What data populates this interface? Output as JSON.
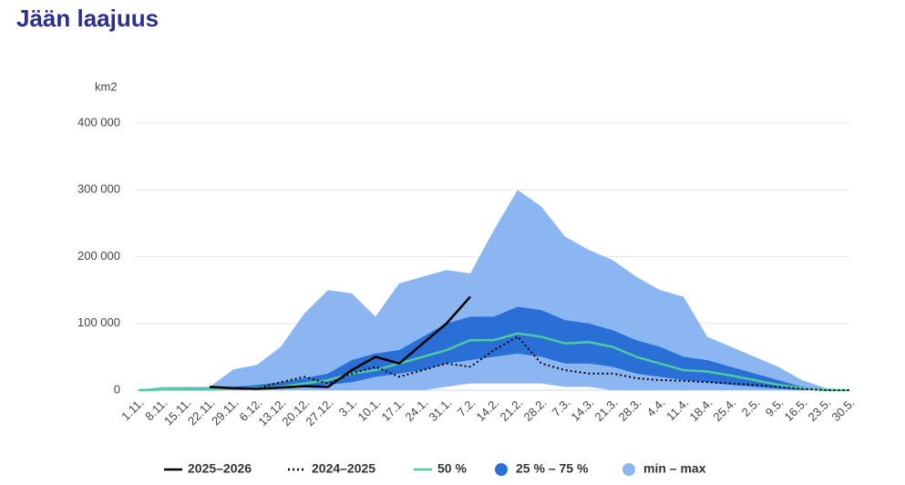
{
  "chart_data": {
    "type": "area-range-line",
    "title": "Jään laajuus",
    "y_axis_label": "km2",
    "categories": [
      "1.11.",
      "8.11.",
      "15.11.",
      "22.11.",
      "29.11.",
      "6.12.",
      "13.12.",
      "20.12.",
      "27.12.",
      "3.1.",
      "10.1.",
      "17.1.",
      "24.1.",
      "31.1.",
      "7.2.",
      "14.2.",
      "21.2.",
      "28.2.",
      "7.3.",
      "14.3.",
      "21.3.",
      "28.3.",
      "4.4.",
      "11.4.",
      "18.4.",
      "25.4.",
      "2.5.",
      "9.5.",
      "16.5.",
      "23.5.",
      "30.5."
    ],
    "ylim": [
      0,
      400000
    ],
    "yticks": [
      0,
      {
        "value": 100000,
        "label": "100 000"
      },
      {
        "value": 200000,
        "label": "200 000"
      },
      {
        "value": 300000,
        "label": "300 000"
      },
      {
        "value": 400000,
        "label": "400 000"
      }
    ],
    "grid": true,
    "legend": "bottom",
    "series": [
      {
        "name": "2025–2026",
        "kind": "line",
        "dash": "solid",
        "color": "#000000",
        "values": [
          null,
          null,
          null,
          5000,
          3000,
          2000,
          4000,
          6000,
          5000,
          30000,
          50000,
          40000,
          70000,
          100000,
          140000,
          null,
          null,
          null,
          null,
          null,
          null,
          null,
          null,
          null,
          null,
          null,
          null,
          null,
          null,
          null,
          null
        ]
      },
      {
        "name": "2024–2025",
        "kind": "line",
        "dash": "dotted",
        "color": "#000000",
        "values": [
          null,
          null,
          null,
          5000,
          3000,
          2000,
          12000,
          20000,
          10000,
          25000,
          35000,
          20000,
          30000,
          40000,
          35000,
          60000,
          80000,
          40000,
          30000,
          25000,
          25000,
          18000,
          15000,
          14000,
          12000,
          10000,
          8000,
          5000,
          2000,
          0,
          0
        ]
      },
      {
        "name": "50 %",
        "kind": "line",
        "dash": "solid",
        "color": "#4fc9a0",
        "values": [
          0,
          1000,
          1000,
          1000,
          2000,
          3000,
          5000,
          10000,
          15000,
          25000,
          30000,
          40000,
          50000,
          60000,
          75000,
          75000,
          85000,
          80000,
          70000,
          72000,
          65000,
          50000,
          40000,
          30000,
          28000,
          22000,
          15000,
          8000,
          3000,
          0,
          0
        ]
      },
      {
        "name": "25 % – 75 %",
        "kind": "range",
        "color": "#2a6fd6",
        "low": [
          0,
          0,
          0,
          0,
          0,
          1000,
          2000,
          5000,
          8000,
          12000,
          20000,
          25000,
          30000,
          40000,
          45000,
          50000,
          55000,
          50000,
          40000,
          40000,
          35000,
          25000,
          20000,
          15000,
          12000,
          8000,
          5000,
          2000,
          0,
          0,
          0
        ],
        "high": [
          0,
          2000,
          3000,
          3000,
          5000,
          8000,
          12000,
          18000,
          25000,
          45000,
          55000,
          60000,
          80000,
          100000,
          110000,
          110000,
          125000,
          120000,
          105000,
          100000,
          90000,
          75000,
          65000,
          50000,
          45000,
          35000,
          25000,
          15000,
          5000,
          1000,
          0
        ]
      },
      {
        "name": "min – max",
        "kind": "range",
        "color": "#8cb6f2",
        "low": [
          0,
          0,
          0,
          0,
          0,
          0,
          0,
          0,
          0,
          0,
          0,
          0,
          0,
          5000,
          10000,
          10000,
          10000,
          10000,
          5000,
          5000,
          0,
          0,
          0,
          0,
          0,
          0,
          0,
          0,
          0,
          0,
          0
        ],
        "high": [
          0,
          5000,
          5000,
          5000,
          31000,
          38000,
          65000,
          115000,
          150000,
          145000,
          110000,
          160000,
          170000,
          180000,
          175000,
          240000,
          300000,
          275000,
          230000,
          210000,
          195000,
          170000,
          150000,
          140000,
          80000,
          65000,
          50000,
          35000,
          15000,
          3000,
          0
        ]
      }
    ]
  }
}
